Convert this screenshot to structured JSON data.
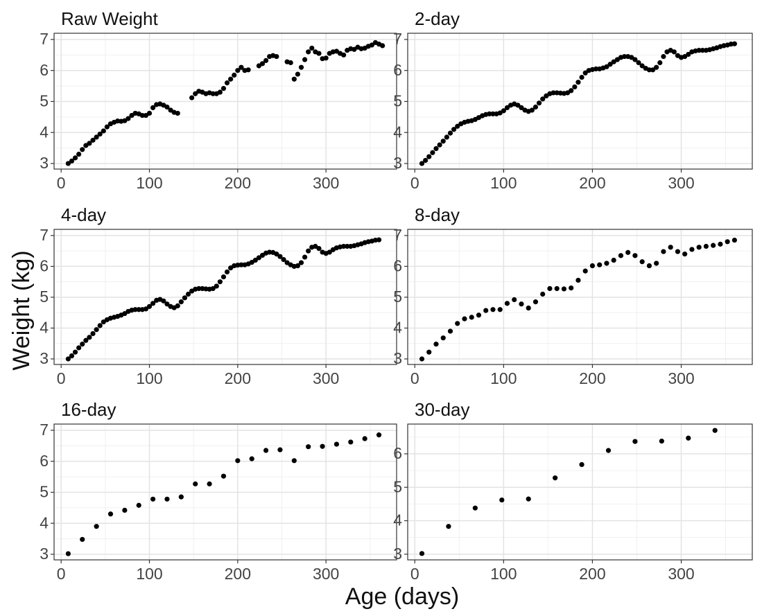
{
  "xlabel": "Age (days)",
  "ylabel": "Weight (kg)",
  "chart_data": [
    {
      "type": "scatter",
      "title": "Raw Weight",
      "color": "#000000",
      "grid": true,
      "xlim": [
        -8,
        380
      ],
      "xticks": [
        0,
        100,
        200,
        300
      ],
      "xminorticks": [
        50,
        150,
        250,
        350
      ],
      "ylim": [
        2.82,
        7.2
      ],
      "yticks": [
        3,
        4,
        5,
        6,
        7
      ],
      "yminorticks": [
        3.5,
        4.5,
        5.5,
        6.5
      ],
      "x": [
        8,
        12,
        16,
        20,
        24,
        28,
        32,
        36,
        40,
        44,
        48,
        52,
        56,
        60,
        64,
        68,
        72,
        76,
        80,
        84,
        88,
        92,
        96,
        100,
        104,
        108,
        112,
        116,
        120,
        124,
        128,
        132,
        148,
        152,
        156,
        160,
        164,
        168,
        172,
        176,
        180,
        184,
        188,
        192,
        196,
        200,
        204,
        208,
        212,
        224,
        228,
        232,
        236,
        240,
        244,
        256,
        260,
        264,
        268,
        272,
        276,
        280,
        284,
        288,
        292,
        296,
        300,
        304,
        308,
        312,
        316,
        320,
        324,
        328,
        332,
        336,
        340,
        344,
        348,
        352,
        356,
        360,
        364
      ],
      "values": [
        3.0,
        3.08,
        3.18,
        3.3,
        3.45,
        3.58,
        3.65,
        3.75,
        3.85,
        3.95,
        4.05,
        4.18,
        4.28,
        4.33,
        4.37,
        4.36,
        4.38,
        4.45,
        4.55,
        4.62,
        4.6,
        4.55,
        4.55,
        4.62,
        4.8,
        4.9,
        4.92,
        4.88,
        4.82,
        4.72,
        4.65,
        4.62,
        5.12,
        5.25,
        5.33,
        5.3,
        5.25,
        5.28,
        5.25,
        5.25,
        5.3,
        5.42,
        5.6,
        5.72,
        5.85,
        6.0,
        6.1,
        6.0,
        6.02,
        6.15,
        6.22,
        6.32,
        6.45,
        6.48,
        6.45,
        6.28,
        6.25,
        5.72,
        5.88,
        6.1,
        6.35,
        6.6,
        6.72,
        6.6,
        6.55,
        6.38,
        6.4,
        6.55,
        6.6,
        6.62,
        6.55,
        6.5,
        6.65,
        6.7,
        6.68,
        6.75,
        6.7,
        6.72,
        6.78,
        6.82,
        6.9,
        6.85,
        6.8
      ]
    },
    {
      "type": "scatter",
      "title": "2-day",
      "color": "#000000",
      "grid": true,
      "xlim": [
        -8,
        380
      ],
      "xticks": [
        0,
        100,
        200,
        300
      ],
      "xminorticks": [
        50,
        150,
        250,
        350
      ],
      "ylim": [
        2.82,
        7.2
      ],
      "yticks": [
        3,
        4,
        5,
        6,
        7
      ],
      "yminorticks": [
        3.5,
        4.5,
        5.5,
        6.5
      ],
      "x": [
        8,
        12,
        16,
        20,
        24,
        28,
        32,
        36,
        40,
        44,
        48,
        52,
        56,
        60,
        64,
        68,
        72,
        76,
        80,
        84,
        88,
        92,
        96,
        100,
        104,
        108,
        112,
        116,
        120,
        124,
        128,
        132,
        136,
        140,
        144,
        148,
        152,
        156,
        160,
        164,
        168,
        172,
        176,
        180,
        184,
        188,
        192,
        196,
        200,
        204,
        208,
        212,
        216,
        220,
        224,
        228,
        232,
        236,
        240,
        244,
        248,
        252,
        256,
        260,
        264,
        268,
        272,
        276,
        280,
        284,
        288,
        292,
        296,
        300,
        304,
        308,
        312,
        316,
        320,
        324,
        328,
        332,
        336,
        340,
        344,
        348,
        352,
        356,
        360
      ],
      "values": [
        3.0,
        3.1,
        3.22,
        3.35,
        3.48,
        3.6,
        3.72,
        3.85,
        3.98,
        4.1,
        4.2,
        4.28,
        4.33,
        4.36,
        4.38,
        4.42,
        4.48,
        4.54,
        4.58,
        4.6,
        4.6,
        4.6,
        4.63,
        4.7,
        4.8,
        4.88,
        4.92,
        4.88,
        4.8,
        4.72,
        4.68,
        4.72,
        4.82,
        4.95,
        5.08,
        5.18,
        5.25,
        5.28,
        5.28,
        5.27,
        5.26,
        5.28,
        5.35,
        5.47,
        5.62,
        5.78,
        5.92,
        6.0,
        6.03,
        6.05,
        6.05,
        6.08,
        6.12,
        6.2,
        6.28,
        6.35,
        6.42,
        6.45,
        6.45,
        6.42,
        6.35,
        6.25,
        6.15,
        6.07,
        6.02,
        6.02,
        6.1,
        6.25,
        6.45,
        6.6,
        6.65,
        6.6,
        6.48,
        6.42,
        6.45,
        6.52,
        6.6,
        6.63,
        6.65,
        6.65,
        6.65,
        6.67,
        6.7,
        6.73,
        6.77,
        6.8,
        6.82,
        6.85,
        6.86
      ]
    },
    {
      "type": "scatter",
      "title": "4-day",
      "color": "#000000",
      "grid": true,
      "xlim": [
        -8,
        380
      ],
      "xticks": [
        0,
        100,
        200,
        300
      ],
      "xminorticks": [
        50,
        150,
        250,
        350
      ],
      "ylim": [
        2.82,
        7.2
      ],
      "yticks": [
        3,
        4,
        5,
        6,
        7
      ],
      "yminorticks": [
        3.5,
        4.5,
        5.5,
        6.5
      ],
      "x": [
        8,
        12,
        16,
        20,
        24,
        28,
        32,
        36,
        40,
        44,
        48,
        52,
        56,
        60,
        64,
        68,
        72,
        76,
        80,
        84,
        88,
        92,
        96,
        100,
        104,
        108,
        112,
        116,
        120,
        124,
        128,
        132,
        136,
        140,
        144,
        148,
        152,
        156,
        160,
        164,
        168,
        172,
        176,
        180,
        184,
        188,
        192,
        196,
        200,
        204,
        208,
        212,
        216,
        220,
        224,
        228,
        232,
        236,
        240,
        244,
        248,
        252,
        256,
        260,
        264,
        268,
        272,
        276,
        280,
        284,
        288,
        292,
        296,
        300,
        304,
        308,
        312,
        316,
        320,
        324,
        328,
        332,
        336,
        340,
        344,
        348,
        352,
        356,
        360
      ],
      "values": [
        3.0,
        3.1,
        3.22,
        3.36,
        3.48,
        3.6,
        3.7,
        3.82,
        3.95,
        4.08,
        4.2,
        4.27,
        4.32,
        4.35,
        4.38,
        4.42,
        4.47,
        4.54,
        4.58,
        4.6,
        4.6,
        4.6,
        4.62,
        4.7,
        4.8,
        4.9,
        4.93,
        4.88,
        4.78,
        4.7,
        4.66,
        4.72,
        4.85,
        4.98,
        5.1,
        5.2,
        5.26,
        5.28,
        5.28,
        5.27,
        5.26,
        5.28,
        5.36,
        5.5,
        5.66,
        5.82,
        5.95,
        6.02,
        6.04,
        6.05,
        6.05,
        6.08,
        6.13,
        6.2,
        6.28,
        6.36,
        6.43,
        6.46,
        6.45,
        6.4,
        6.32,
        6.22,
        6.12,
        6.05,
        6.0,
        6.02,
        6.12,
        6.3,
        6.5,
        6.62,
        6.65,
        6.58,
        6.46,
        6.42,
        6.46,
        6.54,
        6.6,
        6.63,
        6.65,
        6.65,
        6.65,
        6.67,
        6.7,
        6.73,
        6.77,
        6.8,
        6.82,
        6.85,
        6.86
      ]
    },
    {
      "type": "scatter",
      "title": "8-day",
      "color": "#000000",
      "grid": true,
      "xlim": [
        -8,
        380
      ],
      "xticks": [
        0,
        100,
        200,
        300
      ],
      "xminorticks": [
        50,
        150,
        250,
        350
      ],
      "ylim": [
        2.82,
        7.2
      ],
      "yticks": [
        3,
        4,
        5,
        6,
        7
      ],
      "yminorticks": [
        3.5,
        4.5,
        5.5,
        6.5
      ],
      "x": [
        8,
        16,
        24,
        32,
        40,
        48,
        56,
        64,
        72,
        80,
        88,
        96,
        104,
        112,
        120,
        128,
        136,
        144,
        152,
        160,
        168,
        176,
        184,
        192,
        200,
        208,
        216,
        224,
        232,
        240,
        248,
        256,
        264,
        272,
        280,
        288,
        296,
        304,
        312,
        320,
        328,
        336,
        344,
        352,
        360
      ],
      "values": [
        3.0,
        3.22,
        3.48,
        3.68,
        3.9,
        4.15,
        4.3,
        4.35,
        4.42,
        4.57,
        4.6,
        4.6,
        4.8,
        4.92,
        4.78,
        4.65,
        4.85,
        5.1,
        5.28,
        5.28,
        5.27,
        5.3,
        5.55,
        5.85,
        6.02,
        6.05,
        6.1,
        6.2,
        6.35,
        6.45,
        6.35,
        6.15,
        6.02,
        6.1,
        6.48,
        6.62,
        6.48,
        6.4,
        6.55,
        6.62,
        6.65,
        6.68,
        6.72,
        6.8,
        6.85
      ]
    },
    {
      "type": "scatter",
      "title": "16-day",
      "color": "#000000",
      "grid": true,
      "xlim": [
        -8,
        380
      ],
      "xticks": [
        0,
        100,
        200,
        300
      ],
      "xminorticks": [
        50,
        150,
        250,
        350
      ],
      "ylim": [
        2.82,
        7.2
      ],
      "yticks": [
        3,
        4,
        5,
        6,
        7
      ],
      "yminorticks": [
        3.5,
        4.5,
        5.5,
        6.5
      ],
      "x": [
        8,
        24,
        40,
        56,
        72,
        88,
        104,
        120,
        136,
        152,
        168,
        184,
        200,
        216,
        232,
        248,
        264,
        280,
        296,
        312,
        328,
        344,
        360
      ],
      "values": [
        3.02,
        3.48,
        3.9,
        4.3,
        4.42,
        4.58,
        4.78,
        4.78,
        4.85,
        5.27,
        5.27,
        5.52,
        6.02,
        6.08,
        6.35,
        6.37,
        6.02,
        6.47,
        6.48,
        6.55,
        6.62,
        6.73,
        6.85
      ]
    },
    {
      "type": "scatter",
      "title": "30-day",
      "color": "#000000",
      "grid": true,
      "xlim": [
        -8,
        380
      ],
      "xticks": [
        0,
        100,
        200,
        300
      ],
      "xminorticks": [
        50,
        150,
        250,
        350
      ],
      "ylim": [
        2.83,
        6.89
      ],
      "yticks": [
        3,
        4,
        5,
        6
      ],
      "yminorticks": [
        3.5,
        4.5,
        5.5,
        6.5
      ],
      "x": [
        8,
        38,
        68,
        98,
        128,
        158,
        188,
        218,
        248,
        278,
        308,
        338
      ],
      "values": [
        3.02,
        3.83,
        4.38,
        4.62,
        4.65,
        5.28,
        5.68,
        6.1,
        6.37,
        6.38,
        6.47,
        6.7
      ]
    }
  ]
}
